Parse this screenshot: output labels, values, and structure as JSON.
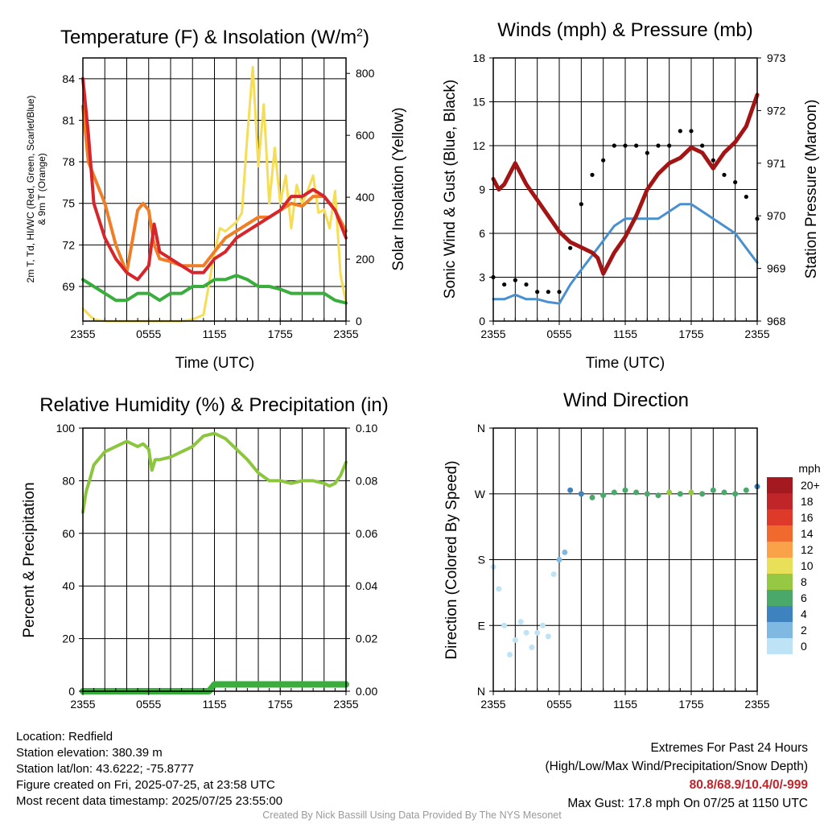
{
  "chart_data": [
    {
      "type": "line",
      "title": "Temperature (F) & Insolation (W/m2)",
      "title_main": "Temperature (F) & Insolation (W/m",
      "title_sup": "2",
      "title_end": ")",
      "xlabel": "Time (UTC)",
      "ylabel_line1": "2m T, Td, HI/WC (Red, Green, Scarlet/Blue)",
      "ylabel_line2": "& 9m T (Orange)",
      "ylabel_right": "Solar Insolation (Yellow)",
      "xticks": [
        "2355",
        "0555",
        "1155",
        "1755",
        "2355"
      ],
      "ylim": [
        66.5,
        85.5
      ],
      "yticks": [
        69,
        72,
        75,
        78,
        81,
        84
      ],
      "ylim_right": [
        0,
        850
      ],
      "yticks_right": [
        0,
        200,
        400,
        600,
        800
      ],
      "colors": {
        "temp": "#d6262c",
        "dewpoint": "#3aae3c",
        "temp9m": "#f07e27",
        "insolation": "#f5de55"
      },
      "series": [
        {
          "name": "2m T",
          "x": [
            0,
            0.5,
            1,
            2,
            3,
            4,
            5,
            6,
            6.5,
            7,
            8,
            9,
            10,
            11,
            12,
            13,
            14,
            15,
            16,
            17,
            18,
            19,
            20,
            21,
            22,
            23,
            24
          ],
          "values": [
            84,
            80,
            75,
            72.5,
            71,
            70,
            69.5,
            70.5,
            73.5,
            71.5,
            71,
            70.5,
            70,
            70,
            71,
            71.5,
            72.5,
            73,
            73.5,
            74,
            74.5,
            75.5,
            75.5,
            76,
            75.5,
            74.5,
            72.5
          ]
        },
        {
          "name": "9m T",
          "x": [
            0,
            0.5,
            1,
            1.5,
            2,
            3,
            4,
            5,
            5.5,
            6,
            6.5,
            7,
            8,
            9,
            10,
            11,
            12,
            13,
            14,
            15,
            16,
            17,
            18,
            19,
            20,
            21,
            22,
            23,
            24
          ],
          "values": [
            82,
            78,
            77,
            76,
            75,
            72,
            70,
            74.5,
            75,
            74.5,
            72,
            71,
            70.8,
            70.5,
            70.5,
            70.5,
            71.5,
            72.5,
            73,
            73.5,
            74,
            74,
            74.5,
            75,
            74.8,
            75.5,
            75.5,
            74.5,
            73
          ]
        },
        {
          "name": "Td",
          "x": [
            0,
            1,
            2,
            3,
            4,
            5,
            6,
            7,
            8,
            9,
            10,
            11,
            12,
            13,
            14,
            15,
            16,
            17,
            18,
            19,
            20,
            21,
            22,
            23,
            24
          ],
          "values": [
            69.5,
            69,
            68.5,
            68,
            68,
            68.5,
            68.5,
            68,
            68.5,
            68.5,
            69,
            69,
            69.5,
            69.5,
            69.8,
            69.5,
            69,
            69,
            68.8,
            68.5,
            68.5,
            68.5,
            68.5,
            68,
            67.8
          ]
        },
        {
          "name": "Insolation",
          "x": [
            0,
            1,
            2,
            3,
            4,
            5,
            6,
            7,
            8,
            9,
            10,
            11,
            11.5,
            12,
            12.5,
            13,
            14,
            14.5,
            15,
            15.5,
            16,
            16.5,
            17,
            17.5,
            18,
            18.5,
            19,
            19.5,
            20,
            20.5,
            21,
            21.5,
            22,
            22.5,
            23,
            23.5,
            24
          ],
          "values": [
            40,
            5,
            0,
            0,
            0,
            0,
            0,
            0,
            0,
            0,
            5,
            20,
            120,
            220,
            300,
            290,
            320,
            350,
            600,
            820,
            500,
            700,
            380,
            560,
            380,
            470,
            300,
            440,
            380,
            420,
            470,
            350,
            360,
            300,
            420,
            150,
            60
          ]
        }
      ]
    },
    {
      "type": "scatter",
      "title": "Winds (mph) & Pressure (mb)",
      "xlabel": "Time (UTC)",
      "ylabel": "Sonic Wind & Gust (Blue, Black)",
      "ylabel_right": "Station Pressure (Maroon)",
      "xticks": [
        "2355",
        "0555",
        "1155",
        "1755",
        "2355"
      ],
      "ylim": [
        0,
        18
      ],
      "yticks": [
        0,
        3,
        6,
        9,
        12,
        15,
        18
      ],
      "ylim_right": [
        968,
        973
      ],
      "yticks_right": [
        968,
        969,
        970,
        971,
        972,
        973
      ],
      "colors": {
        "wind": "#4a90cf",
        "gust": "#000000",
        "pressure": "#a31515"
      },
      "series": [
        {
          "name": "Sonic Wind",
          "x": [
            0,
            1,
            2,
            3,
            4,
            5,
            6,
            7,
            8,
            9,
            10,
            11,
            12,
            13,
            14,
            15,
            16,
            17,
            18,
            19,
            20,
            21,
            22,
            23,
            24
          ],
          "values": [
            1.5,
            1.5,
            1.8,
            1.5,
            1.5,
            1.3,
            1.2,
            2.5,
            3.5,
            4.5,
            5.5,
            6.5,
            7,
            7,
            7,
            7,
            7.5,
            8,
            8,
            7.5,
            7,
            6.5,
            6,
            5,
            4
          ]
        },
        {
          "name": "Gust",
          "x": [
            0,
            1,
            2,
            3,
            4,
            5,
            6,
            7,
            8,
            9,
            10,
            11,
            12,
            13,
            14,
            15,
            16,
            17,
            18,
            19,
            20,
            21,
            22,
            23,
            24
          ],
          "values": [
            3,
            2.5,
            2.8,
            2.5,
            2,
            2,
            2,
            5,
            8,
            10,
            11,
            12,
            12,
            12,
            11.5,
            12,
            12,
            13,
            13,
            12,
            11,
            10,
            9.5,
            8.5,
            7
          ]
        },
        {
          "name": "Pressure",
          "x": [
            0,
            0.5,
            1,
            2,
            3,
            4,
            5,
            6,
            7,
            8,
            9,
            9.5,
            10,
            11,
            12,
            13,
            14,
            15,
            16,
            17,
            18,
            19,
            20,
            21,
            22,
            23,
            24
          ],
          "values": [
            970.7,
            970.5,
            970.6,
            971,
            970.6,
            970.3,
            970,
            969.7,
            969.5,
            969.4,
            969.3,
            969.2,
            968.9,
            969.3,
            969.6,
            970,
            970.5,
            970.8,
            971.0,
            971.1,
            971.3,
            971.2,
            970.9,
            971.2,
            971.4,
            971.7,
            972.3
          ]
        }
      ]
    },
    {
      "type": "line",
      "title": "Relative Humidity (%) & Precipitation (in)",
      "xlabel": "",
      "ylabel": "Percent & Precipitation",
      "xticks": [
        "2355",
        "0555",
        "1155",
        "1755",
        "2355"
      ],
      "ylim": [
        0,
        100
      ],
      "yticks": [
        0,
        20,
        40,
        60,
        80,
        100
      ],
      "ylim_right": [
        0,
        0.1
      ],
      "yticks_right": [
        "0.00",
        "0.02",
        "0.04",
        "0.06",
        "0.08",
        "0.10"
      ],
      "colors": {
        "rh": "#8cc63f",
        "precip": "#3aae3c"
      },
      "series": [
        {
          "name": "RH",
          "x": [
            0,
            0.3,
            0.6,
            1,
            2,
            3,
            4,
            5,
            5.5,
            6,
            6.3,
            6.6,
            7,
            8,
            9,
            10,
            11,
            12,
            13,
            14,
            15,
            16,
            17,
            18,
            19,
            20,
            21,
            22,
            22.5,
            23,
            23.5,
            24
          ],
          "values": [
            68,
            76,
            80,
            86,
            91,
            93,
            95,
            93,
            94,
            92,
            84,
            88,
            88,
            89,
            91,
            93,
            97,
            98,
            96,
            92,
            88,
            83,
            80,
            80,
            79,
            80,
            80,
            79,
            78,
            79,
            82,
            87
          ]
        },
        {
          "name": "Precipitation",
          "x": [
            0,
            11.5,
            12,
            24
          ],
          "values": [
            0,
            0,
            0.0026,
            0.0026
          ]
        }
      ]
    },
    {
      "type": "scatter",
      "title": "Wind Direction",
      "ylabel": "Direction (Colored By Speed)",
      "xticks": [
        "2355",
        "0555",
        "1155",
        "1755",
        "2355"
      ],
      "yticks": [
        "N",
        "E",
        "S",
        "W",
        "N"
      ],
      "ylim": [
        0,
        360
      ],
      "legend_title": "mph",
      "legend_labels": [
        "20+",
        "18",
        "16",
        "14",
        "12",
        "10",
        "8",
        "6",
        "4",
        "2",
        "0"
      ],
      "legend_colors": [
        "#a3191f",
        "#c0252a",
        "#de3a2a",
        "#f06a2e",
        "#f9a24a",
        "#e8e058",
        "#96c844",
        "#4aa86a",
        "#3f82c0",
        "#7fb8e0",
        "#bfe3f6"
      ],
      "series": [
        {
          "name": "Direction",
          "x": [
            0,
            0.5,
            1,
            1.5,
            2,
            2.5,
            3,
            3.5,
            4,
            4.5,
            5,
            5.5,
            6,
            6.5,
            7,
            8,
            9,
            10,
            11,
            12,
            13,
            14,
            15,
            16,
            17,
            18,
            19,
            20,
            21,
            22,
            23,
            24
          ],
          "values": [
            170,
            140,
            90,
            50,
            70,
            95,
            80,
            60,
            80,
            90,
            75,
            160,
            180,
            190,
            275,
            270,
            265,
            268,
            272,
            275,
            272,
            270,
            268,
            272,
            270,
            272,
            270,
            275,
            272,
            270,
            275,
            280
          ],
          "speed": [
            1,
            1,
            1,
            1,
            1,
            1,
            1,
            1,
            1,
            1,
            1,
            1,
            2,
            3,
            5,
            5,
            6,
            6,
            6,
            7,
            7,
            7,
            7,
            8,
            7,
            8,
            7,
            7,
            7,
            6,
            6,
            5
          ]
        }
      ]
    }
  ],
  "footer": {
    "location": "Location: Redfield",
    "elevation": "Station elevation: 380.39 m",
    "latlon": "Station lat/lon: 43.6222; -75.8777",
    "created": "Figure created on Fri, 2025-07-25, at 23:58 UTC",
    "recent": "Most recent data timestamp: 2025/07/25 23:55:00",
    "extremes_title": "Extremes For Past 24 Hours",
    "extremes_legend": "(High/Low/Max Wind/Precipitation/Snow Depth)",
    "extremes_values": "80.8/68.9/10.4/0/-999",
    "max_gust": "Max Gust: 17.8 mph On 07/25 at 1150 UTC",
    "credit": "Created By Nick Bassill Using Data Provided By The NYS Mesonet"
  }
}
